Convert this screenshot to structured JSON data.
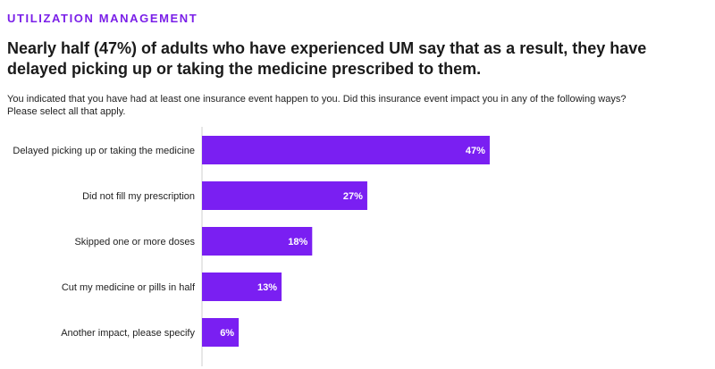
{
  "header": {
    "section_label": "UTILIZATION MANAGEMENT",
    "headline": "Nearly half (47%) of adults who have experienced UM say that as a result, they have delayed picking up or taking the medicine prescribed to them.",
    "question_line1": "You indicated that you have had at least one insurance event happen to you. Did this insurance event impact you in any of the following ways?",
    "question_line2": "Please select all that apply."
  },
  "colors": {
    "accent": "#7a1fe8",
    "bar": "#7a1ff2",
    "axis": "#cfcfcf"
  },
  "chart_data": {
    "type": "bar",
    "orientation": "horizontal",
    "categories": [
      "Delayed picking up or taking the medicine",
      "Did not fill my prescription",
      "Skipped one or more doses",
      "Cut my medicine or pills in half",
      "Another impact, please specify"
    ],
    "values": [
      47,
      27,
      18,
      13,
      6
    ],
    "value_labels": [
      "47%",
      "27%",
      "18%",
      "13%",
      "6%"
    ],
    "unit": "%",
    "xlim": [
      0,
      100
    ],
    "grid": false,
    "legend": "none"
  }
}
